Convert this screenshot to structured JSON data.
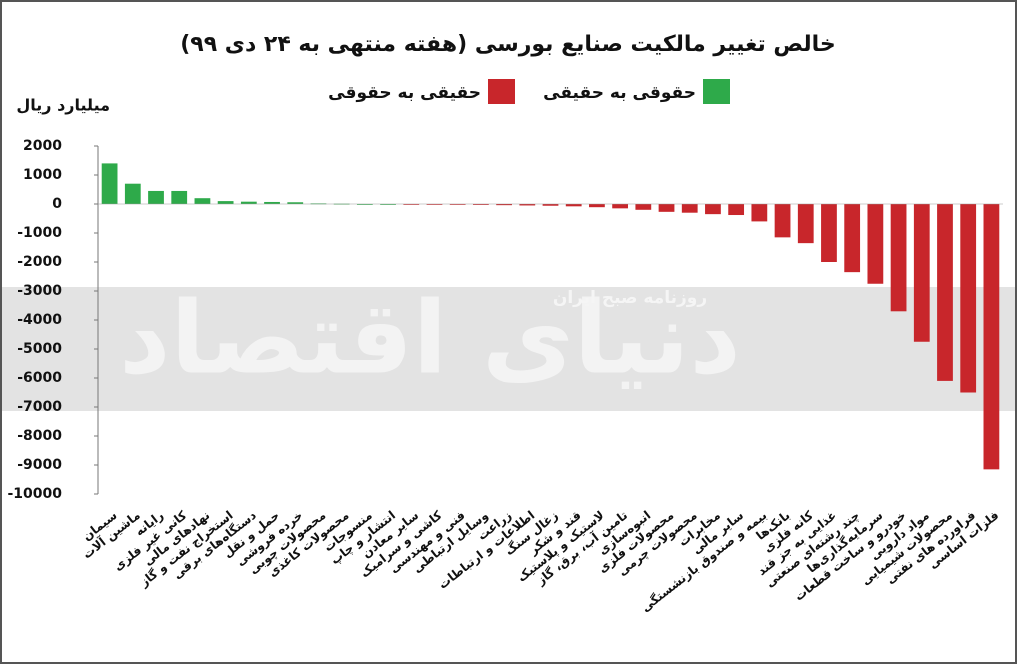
{
  "chart_data": {
    "type": "bar",
    "title": "خالص تغییر مالکیت صنایع بورسی (هفته منتهی به ۲۴ دی ۹۹)",
    "ylabel": "میلیارد ریال",
    "legend": [
      {
        "label": "حقوقی به حقیقی",
        "color": "#2eaa4a"
      },
      {
        "label": "حقیقی به حقوقی",
        "color": "#c8262b"
      }
    ],
    "watermark": [
      "دنیای اقتصاد",
      "روزنامه صبح ایران"
    ],
    "categories": [
      "سیمان",
      "ماشین آلات",
      "رایانه",
      "کانی غیر فلزی",
      "نهادهای مالی",
      "استخراج نفت و گاز",
      "دستگاه‌های برقی",
      "حمل و نقل",
      "خرده فروشی",
      "محصولات چوبی",
      "محصولات کاغذی",
      "منسوجات",
      "انتشار و چاپ",
      "سایر معادن",
      "کاشی و سرامیک",
      "فنی و مهندسی",
      "وسایل ارتباطی",
      "زراعت",
      "اطلاعات و ارتباطات",
      "زغال سنگ",
      "قند و شکر",
      "لاستیک و پلاستیک",
      "تامین آب، برق، گاز",
      "انبوه‌سازی",
      "محصولات فلزی",
      "محصولات چرمی",
      "مخابرات",
      "سایر مالی",
      "بیمه و صندوق بازنشستگی",
      "بانک‌ها",
      "کانه فلزی",
      "غذایی به جز قند",
      "چند رشته‌ای صنعتی",
      "سرمایه‌گذاری‌ها",
      "خودرو و ساخت قطعات",
      "مواد دارویی",
      "محصولات شیمیایی",
      "فراورده های نفتی",
      "فلزات اساسی"
    ],
    "values": [
      1400,
      700,
      450,
      450,
      200,
      100,
      80,
      70,
      60,
      20,
      10,
      0,
      0,
      -10,
      -10,
      -20,
      -30,
      -40,
      -50,
      -60,
      -80,
      -110,
      -150,
      -200,
      -270,
      -300,
      -350,
      -380,
      -600,
      -1150,
      -1350,
      -2000,
      -2350,
      -2750,
      -3700,
      -4750,
      -6100,
      -6500,
      -9150
    ],
    "ylim": [
      -10000,
      2000
    ],
    "yticks": [
      2000,
      1000,
      0,
      -1000,
      -2000,
      -3000,
      -4000,
      -5000,
      -6000,
      -7000,
      -8000,
      -9000,
      -10000
    ]
  }
}
